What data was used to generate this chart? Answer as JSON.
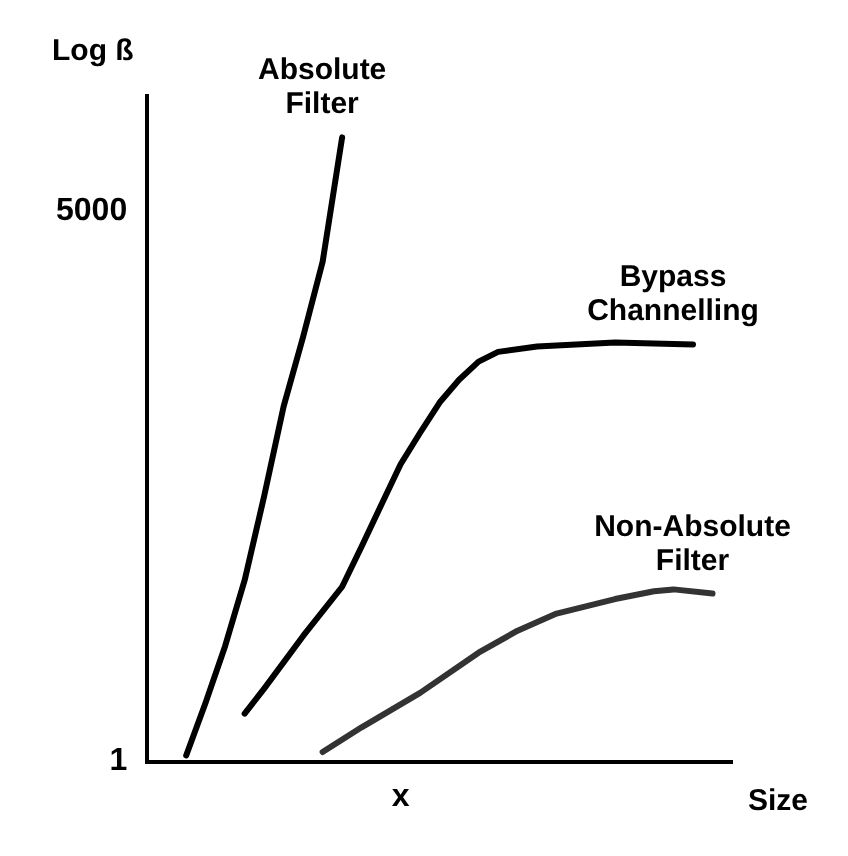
{
  "chart_data": {
    "type": "line",
    "ylabel": "Log ß",
    "xlabel": "Size",
    "log": "y",
    "legend": false,
    "marker": "none",
    "categories": [
      null,
      null,
      null,
      null,
      null,
      null,
      null,
      null,
      null,
      null,
      null,
      null,
      null,
      "x",
      null,
      null,
      null,
      null,
      null,
      null,
      null,
      null,
      null,
      null,
      null,
      null,
      null,
      null,
      null,
      null,
      null
    ],
    "ylim": [
      1,
      30000
    ],
    "yticks": [
      1,
      5000
    ],
    "series": [
      {
        "name": "Absolute Filter",
        "color": "#000000",
        "values": [
          null,
          null,
          1.1,
          2.5,
          6,
          16.6,
          61,
          245,
          720,
          2300,
          15800,
          null,
          null,
          null,
          null,
          null,
          null,
          null,
          null,
          null,
          null,
          null,
          null,
          null,
          null,
          null,
          null,
          null,
          null,
          null,
          null
        ]
      },
      {
        "name": "Bypass Channelling",
        "color": "#000000",
        "values": [
          null,
          null,
          null,
          null,
          null,
          2.1,
          3.1,
          null,
          7,
          null,
          15,
          28,
          53,
          100,
          163,
          260,
          370,
          490,
          570,
          null,
          620,
          null,
          640,
          null,
          660,
          null,
          null,
          null,
          640,
          null,
          null
        ]
      },
      {
        "name": "Non-Absolute Filter",
        "color": "#333333",
        "values": [
          null,
          null,
          null,
          null,
          null,
          null,
          null,
          null,
          null,
          1.16,
          null,
          1.7,
          null,
          null,
          2.9,
          null,
          null,
          5.4,
          null,
          7.6,
          null,
          9.9,
          null,
          null,
          12.4,
          null,
          14,
          14.4,
          null,
          13.5,
          null
        ]
      }
    ]
  }
}
